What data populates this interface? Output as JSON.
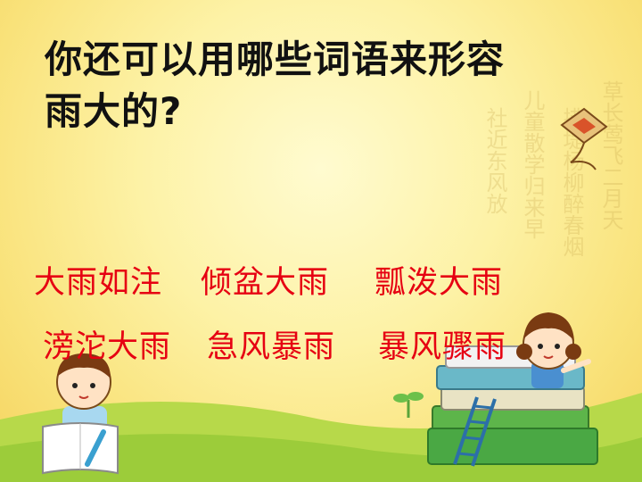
{
  "question": {
    "line1": "你还可以用哪些词语来形容",
    "line2": "雨大的?"
  },
  "idioms": [
    "大雨如注",
    "倾盆大雨",
    "瓢泼大雨",
    "滂沱大雨",
    "急风暴雨",
    "暴风骤雨"
  ],
  "colors": {
    "question_text": "#111111",
    "idiom_text": "#e60012",
    "background": "#fbeb98",
    "grass": "#9ccc3a"
  }
}
